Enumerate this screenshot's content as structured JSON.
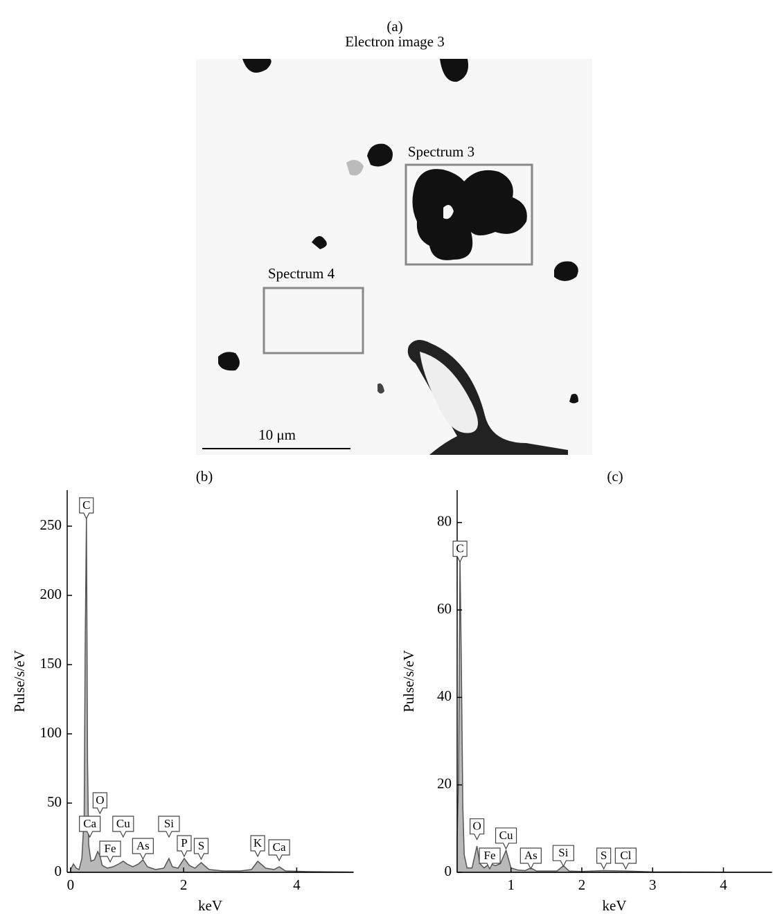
{
  "panel_a": {
    "label": "(a)",
    "title": "Electron image 3",
    "regions": [
      "Spectrum 3",
      "Spectrum 4"
    ],
    "scale_bar": "10 μm"
  },
  "chart_data": [
    {
      "type": "area",
      "label": "(b)",
      "x_label": "keV",
      "y_label": "Pulse/s/eV",
      "color": "#b8b8b8",
      "line_color": "#555555",
      "x": [
        0,
        0.05,
        0.1,
        0.15,
        0.2,
        0.24,
        0.26,
        0.28,
        0.3,
        0.32,
        0.36,
        0.42,
        0.48,
        0.52,
        0.56,
        0.65,
        0.75,
        0.85,
        0.93,
        1.0,
        1.1,
        1.2,
        1.28,
        1.36,
        1.5,
        1.65,
        1.74,
        1.8,
        1.9,
        2.01,
        2.1,
        2.2,
        2.31,
        2.45,
        2.7,
        3.0,
        3.2,
        3.31,
        3.45,
        3.6,
        3.69,
        3.8,
        4.2,
        4.6,
        5.0
      ],
      "values": [
        2,
        6,
        3,
        2,
        10,
        40,
        170,
        257,
        80,
        20,
        8,
        9,
        15,
        12,
        5,
        3,
        4,
        6,
        8,
        6,
        4,
        6,
        9,
        4,
        2,
        3,
        10,
        4,
        3,
        10,
        5,
        3,
        7,
        2,
        1,
        1,
        2,
        8,
        3,
        2,
        4,
        1,
        0.5,
        0.3,
        0.2
      ],
      "xlim": [
        -0.06,
        5.0
      ],
      "ylim": [
        0,
        276
      ],
      "xticks": [
        0,
        2,
        4
      ],
      "yticks": [
        0,
        50,
        100,
        150,
        200,
        250
      ],
      "annotations": [
        {
          "text": "C",
          "x": 0.28,
          "y": 265
        },
        {
          "text": "O",
          "x": 0.52,
          "y": 52
        },
        {
          "text": "Ca",
          "x": 0.34,
          "y": 35
        },
        {
          "text": "Cu",
          "x": 0.93,
          "y": 35
        },
        {
          "text": "Fe",
          "x": 0.7,
          "y": 17
        },
        {
          "text": "As",
          "x": 1.28,
          "y": 19
        },
        {
          "text": "Si",
          "x": 1.74,
          "y": 35
        },
        {
          "text": "P",
          "x": 2.01,
          "y": 21
        },
        {
          "text": "S",
          "x": 2.31,
          "y": 19
        },
        {
          "text": "K",
          "x": 3.31,
          "y": 21
        },
        {
          "text": "Ca",
          "x": 3.69,
          "y": 18
        }
      ]
    },
    {
      "type": "area",
      "label": "(c)",
      "x_label": "keV",
      "y_label": "Pulse/s/eV",
      "color": "#b8b8b8",
      "line_color": "#555555",
      "x": [
        0.24,
        0.26,
        0.28,
        0.3,
        0.32,
        0.34,
        0.38,
        0.45,
        0.52,
        0.56,
        0.62,
        0.7,
        0.78,
        0.85,
        0.93,
        1.0,
        1.1,
        1.2,
        1.28,
        1.36,
        1.5,
        1.65,
        1.74,
        1.82,
        2.0,
        2.31,
        2.62,
        3.0,
        4.0,
        4.68
      ],
      "values": [
        8,
        21,
        72,
        47,
        15,
        4,
        1,
        1,
        6,
        2,
        1,
        2,
        1.5,
        2,
        5,
        1,
        0.5,
        0.4,
        1,
        0.3,
        0.3,
        0.3,
        1.5,
        0.3,
        0.2,
        0.4,
        0.3,
        0.1,
        0.05,
        0.05
      ],
      "xlim": [
        0.24,
        4.68
      ],
      "ylim": [
        0,
        87.4
      ],
      "xticks": [
        1,
        2,
        3,
        4
      ],
      "yticks": [
        0,
        20,
        40,
        60,
        80
      ],
      "annotations": [
        {
          "text": "C",
          "x": 0.28,
          "y": 74
        },
        {
          "text": "O",
          "x": 0.52,
          "y": 10.5
        },
        {
          "text": "Fe",
          "x": 0.7,
          "y": 3.8
        },
        {
          "text": "Cu",
          "x": 0.93,
          "y": 8.4
        },
        {
          "text": "As",
          "x": 1.28,
          "y": 3.8
        },
        {
          "text": "Si",
          "x": 1.74,
          "y": 4.4
        },
        {
          "text": "S",
          "x": 2.31,
          "y": 3.8
        },
        {
          "text": "Cl",
          "x": 2.62,
          "y": 3.8
        }
      ]
    }
  ]
}
